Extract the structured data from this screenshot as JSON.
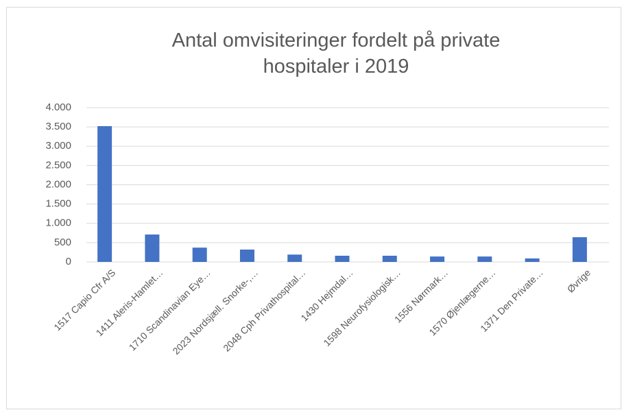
{
  "chart_data": {
    "type": "bar",
    "title": "Antal omvisiteringer fordelt på private hospitaler i 2019",
    "categories": [
      "1517 Capio Cfr A/S",
      "1411 Aleris-Hamlet…",
      "1710 Scandinavian Eye…",
      "2023 Nordsjæll. Snorke-,…",
      "2048 Cph Privathospital…",
      "1430 Hejmdal…",
      "1598 Neurofysiologisk…",
      "1556 Nørmark…",
      "1570 Øjenlægerne…",
      "1371 Den Private…",
      "Øvrige"
    ],
    "values": [
      3520,
      710,
      370,
      320,
      190,
      160,
      160,
      140,
      140,
      90,
      640
    ],
    "color": "#4472c4",
    "ylim": [
      0,
      4000
    ],
    "yticks": [
      0,
      500,
      {
        "value": 1000,
        "label": "1.000"
      },
      {
        "value": 1500,
        "label": "1.500"
      },
      {
        "value": 2000,
        "label": "2.000"
      },
      {
        "value": 2500,
        "label": "2.500"
      },
      {
        "value": 3000,
        "label": "3.000"
      },
      {
        "value": 3500,
        "label": "3.500"
      },
      {
        "value": 4000,
        "label": "4.000"
      }
    ],
    "grid": true
  }
}
